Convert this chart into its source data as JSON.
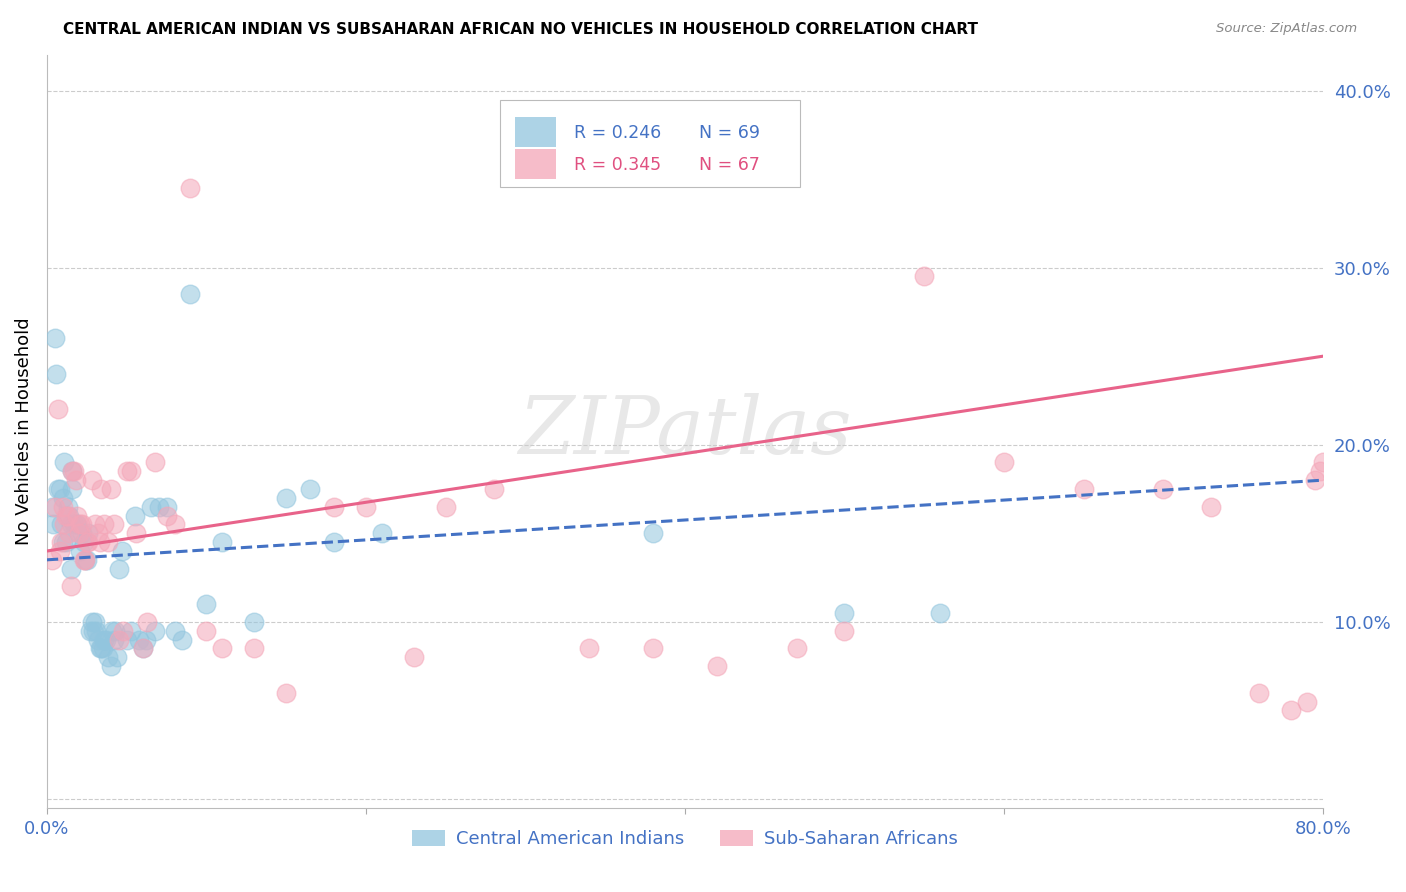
{
  "title": "CENTRAL AMERICAN INDIAN VS SUBSAHARAN AFRICAN NO VEHICLES IN HOUSEHOLD CORRELATION CHART",
  "source": "Source: ZipAtlas.com",
  "ylabel": "No Vehicles in Household",
  "right_yticks": [
    0.0,
    0.1,
    0.2,
    0.3,
    0.4
  ],
  "right_yticklabels": [
    "",
    "10.0%",
    "20.0%",
    "30.0%",
    "40.0%"
  ],
  "xmin": 0.0,
  "xmax": 0.8,
  "ymin": -0.005,
  "ymax": 0.42,
  "color_blue": "#92C5DE",
  "color_pink": "#F4A6B8",
  "color_blue_line": "#4472C4",
  "color_pink_line": "#E8638A",
  "color_blue_text": "#4472C4",
  "color_pink_text": "#E05080",
  "watermark_text": "ZIPatlas",
  "blue_scatter_x": [
    0.003,
    0.004,
    0.005,
    0.006,
    0.007,
    0.008,
    0.009,
    0.01,
    0.01,
    0.011,
    0.012,
    0.013,
    0.014,
    0.015,
    0.015,
    0.016,
    0.016,
    0.017,
    0.018,
    0.019,
    0.02,
    0.021,
    0.022,
    0.023,
    0.024,
    0.025,
    0.026,
    0.027,
    0.028,
    0.029,
    0.03,
    0.031,
    0.032,
    0.033,
    0.034,
    0.035,
    0.036,
    0.037,
    0.038,
    0.04,
    0.041,
    0.042,
    0.043,
    0.044,
    0.045,
    0.047,
    0.05,
    0.053,
    0.055,
    0.058,
    0.06,
    0.062,
    0.065,
    0.068,
    0.07,
    0.075,
    0.08,
    0.085,
    0.09,
    0.1,
    0.11,
    0.13,
    0.15,
    0.165,
    0.18,
    0.21,
    0.38,
    0.5,
    0.56
  ],
  "blue_scatter_y": [
    0.165,
    0.155,
    0.26,
    0.24,
    0.175,
    0.175,
    0.155,
    0.145,
    0.17,
    0.19,
    0.145,
    0.165,
    0.16,
    0.13,
    0.155,
    0.175,
    0.185,
    0.155,
    0.155,
    0.155,
    0.15,
    0.14,
    0.15,
    0.145,
    0.135,
    0.135,
    0.15,
    0.095,
    0.1,
    0.095,
    0.1,
    0.095,
    0.09,
    0.085,
    0.085,
    0.085,
    0.09,
    0.09,
    0.08,
    0.075,
    0.095,
    0.09,
    0.095,
    0.08,
    0.13,
    0.14,
    0.09,
    0.095,
    0.16,
    0.09,
    0.085,
    0.09,
    0.165,
    0.095,
    0.165,
    0.165,
    0.095,
    0.09,
    0.285,
    0.11,
    0.145,
    0.1,
    0.17,
    0.175,
    0.145,
    0.15,
    0.15,
    0.105,
    0.105
  ],
  "pink_scatter_x": [
    0.003,
    0.005,
    0.007,
    0.008,
    0.009,
    0.01,
    0.011,
    0.012,
    0.013,
    0.014,
    0.015,
    0.016,
    0.017,
    0.018,
    0.019,
    0.02,
    0.021,
    0.022,
    0.023,
    0.024,
    0.025,
    0.026,
    0.028,
    0.03,
    0.032,
    0.033,
    0.034,
    0.036,
    0.038,
    0.04,
    0.042,
    0.045,
    0.048,
    0.05,
    0.053,
    0.056,
    0.06,
    0.063,
    0.068,
    0.075,
    0.08,
    0.09,
    0.1,
    0.11,
    0.13,
    0.15,
    0.18,
    0.2,
    0.23,
    0.25,
    0.28,
    0.34,
    0.38,
    0.42,
    0.47,
    0.5,
    0.55,
    0.6,
    0.65,
    0.7,
    0.73,
    0.76,
    0.78,
    0.79,
    0.795,
    0.798,
    0.8
  ],
  "pink_scatter_y": [
    0.135,
    0.165,
    0.22,
    0.14,
    0.145,
    0.165,
    0.155,
    0.16,
    0.16,
    0.15,
    0.12,
    0.185,
    0.185,
    0.18,
    0.16,
    0.15,
    0.155,
    0.155,
    0.135,
    0.135,
    0.145,
    0.145,
    0.18,
    0.155,
    0.15,
    0.145,
    0.175,
    0.155,
    0.145,
    0.175,
    0.155,
    0.09,
    0.095,
    0.185,
    0.185,
    0.15,
    0.085,
    0.1,
    0.19,
    0.16,
    0.155,
    0.345,
    0.095,
    0.085,
    0.085,
    0.06,
    0.165,
    0.165,
    0.08,
    0.165,
    0.175,
    0.085,
    0.085,
    0.075,
    0.085,
    0.095,
    0.295,
    0.19,
    0.175,
    0.175,
    0.165,
    0.06,
    0.05,
    0.055,
    0.18,
    0.185,
    0.19
  ],
  "blue_line_x0": 0.0,
  "blue_line_x1": 0.8,
  "blue_line_y0": 0.135,
  "blue_line_y1": 0.18,
  "pink_line_x0": 0.0,
  "pink_line_x1": 0.8,
  "pink_line_y0": 0.14,
  "pink_line_y1": 0.25
}
